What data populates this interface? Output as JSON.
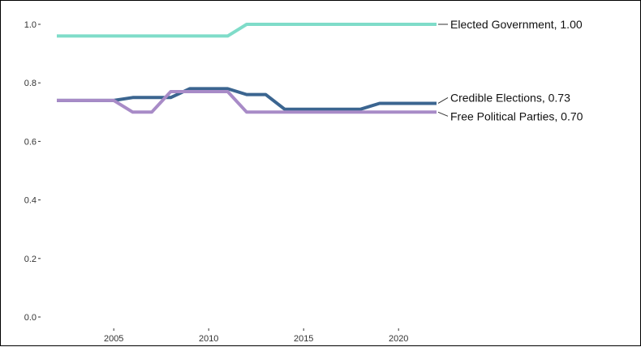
{
  "chart_data": {
    "type": "line",
    "title": "",
    "xlabel": "",
    "ylabel": "",
    "xlim": [
      2002,
      2022
    ],
    "ylim": [
      0,
      1
    ],
    "x_ticks": [
      2005,
      2010,
      2015,
      2020
    ],
    "y_ticks": [
      0.0,
      0.2,
      0.4,
      0.6,
      0.8,
      1.0
    ],
    "y_tick_labels": [
      "0.0",
      "0.2",
      "0.4",
      "0.6",
      "0.8",
      "1.0"
    ],
    "grid": false,
    "legend": "direct labels at line ends (right)",
    "x": [
      2002,
      2003,
      2004,
      2005,
      2006,
      2007,
      2008,
      2009,
      2010,
      2011,
      2012,
      2013,
      2014,
      2015,
      2016,
      2017,
      2018,
      2019,
      2020,
      2021,
      2022
    ],
    "series": [
      {
        "name": "Elected Government",
        "label": "Elected Government, 1.00",
        "color": "#7fdcc9",
        "values": [
          0.96,
          0.96,
          0.96,
          0.96,
          0.96,
          0.96,
          0.96,
          0.96,
          0.96,
          0.96,
          1.0,
          1.0,
          1.0,
          1.0,
          1.0,
          1.0,
          1.0,
          1.0,
          1.0,
          1.0,
          1.0
        ]
      },
      {
        "name": "Credible Elections",
        "label": "Credible Elections, 0.73",
        "color": "#3b6590",
        "values": [
          0.74,
          0.74,
          0.74,
          0.74,
          0.75,
          0.75,
          0.75,
          0.78,
          0.78,
          0.78,
          0.76,
          0.76,
          0.71,
          0.71,
          0.71,
          0.71,
          0.71,
          0.73,
          0.73,
          0.73,
          0.73
        ]
      },
      {
        "name": "Free Political Parties",
        "label": "Free Political Parties, 0.70",
        "color": "#a88bc7",
        "values": [
          0.74,
          0.74,
          0.74,
          0.74,
          0.7,
          0.7,
          0.77,
          0.77,
          0.77,
          0.77,
          0.7,
          0.7,
          0.7,
          0.7,
          0.7,
          0.7,
          0.7,
          0.7,
          0.7,
          0.7,
          0.7
        ]
      }
    ]
  }
}
